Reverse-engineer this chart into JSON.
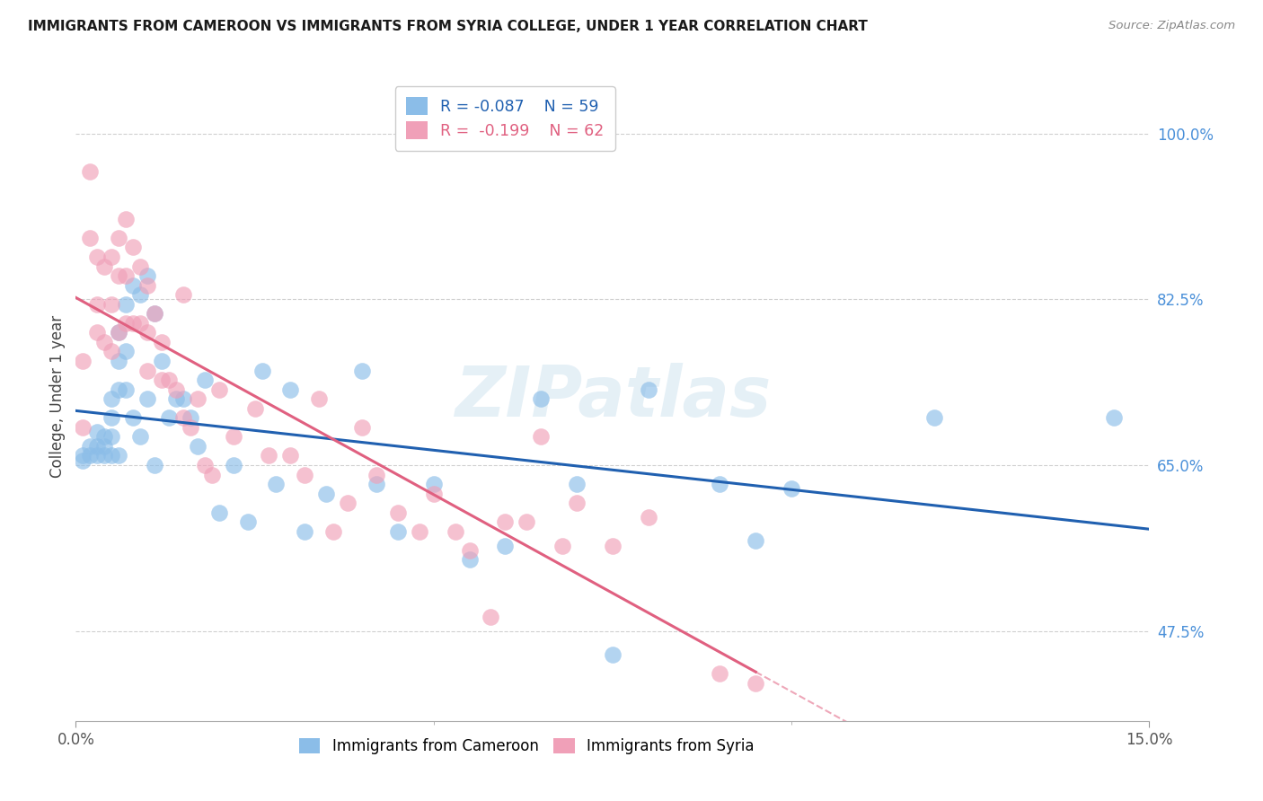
{
  "title": "IMMIGRANTS FROM CAMEROON VS IMMIGRANTS FROM SYRIA COLLEGE, UNDER 1 YEAR CORRELATION CHART",
  "source": "Source: ZipAtlas.com",
  "ylabel_label": "College, Under 1 year",
  "ylabel_ticks": [
    0.475,
    0.65,
    0.825,
    1.0
  ],
  "ylabel_tick_labels": [
    "47.5%",
    "65.0%",
    "82.5%",
    "100.0%"
  ],
  "xlim": [
    0.0,
    0.15
  ],
  "ylim": [
    0.38,
    1.065
  ],
  "legend_r_cameroon": "R = -0.087",
  "legend_n_cameroon": "N = 59",
  "legend_r_syria": "R =  -0.199",
  "legend_n_syria": "N = 62",
  "color_cameroon": "#8bbde8",
  "color_syria": "#f0a0b8",
  "trendline_cameroon_color": "#2060b0",
  "trendline_syria_color": "#e06080",
  "background_color": "#ffffff",
  "watermark": "ZIPatlas",
  "cameroon_x": [
    0.001,
    0.001,
    0.002,
    0.002,
    0.003,
    0.003,
    0.003,
    0.004,
    0.004,
    0.004,
    0.005,
    0.005,
    0.005,
    0.005,
    0.006,
    0.006,
    0.006,
    0.006,
    0.007,
    0.007,
    0.007,
    0.008,
    0.008,
    0.009,
    0.009,
    0.01,
    0.01,
    0.011,
    0.011,
    0.012,
    0.013,
    0.014,
    0.015,
    0.016,
    0.017,
    0.018,
    0.02,
    0.022,
    0.024,
    0.026,
    0.028,
    0.03,
    0.032,
    0.035,
    0.04,
    0.042,
    0.045,
    0.05,
    0.055,
    0.06,
    0.065,
    0.07,
    0.075,
    0.08,
    0.09,
    0.095,
    0.1,
    0.12,
    0.145
  ],
  "cameroon_y": [
    0.66,
    0.655,
    0.67,
    0.66,
    0.685,
    0.67,
    0.66,
    0.68,
    0.67,
    0.66,
    0.72,
    0.7,
    0.68,
    0.66,
    0.79,
    0.76,
    0.73,
    0.66,
    0.82,
    0.77,
    0.73,
    0.84,
    0.7,
    0.83,
    0.68,
    0.85,
    0.72,
    0.81,
    0.65,
    0.76,
    0.7,
    0.72,
    0.72,
    0.7,
    0.67,
    0.74,
    0.6,
    0.65,
    0.59,
    0.75,
    0.63,
    0.73,
    0.58,
    0.62,
    0.75,
    0.63,
    0.58,
    0.63,
    0.55,
    0.565,
    0.72,
    0.63,
    0.45,
    0.73,
    0.63,
    0.57,
    0.625,
    0.7,
    0.7
  ],
  "syria_x": [
    0.001,
    0.001,
    0.002,
    0.002,
    0.003,
    0.003,
    0.003,
    0.004,
    0.004,
    0.005,
    0.005,
    0.005,
    0.006,
    0.006,
    0.006,
    0.007,
    0.007,
    0.007,
    0.008,
    0.008,
    0.009,
    0.009,
    0.01,
    0.01,
    0.01,
    0.011,
    0.012,
    0.012,
    0.013,
    0.014,
    0.015,
    0.015,
    0.016,
    0.017,
    0.018,
    0.019,
    0.02,
    0.022,
    0.025,
    0.027,
    0.03,
    0.032,
    0.034,
    0.036,
    0.038,
    0.04,
    0.042,
    0.045,
    0.048,
    0.05,
    0.053,
    0.055,
    0.058,
    0.06,
    0.063,
    0.065,
    0.068,
    0.07,
    0.075,
    0.08,
    0.09,
    0.095
  ],
  "syria_y": [
    0.76,
    0.69,
    0.96,
    0.89,
    0.87,
    0.82,
    0.79,
    0.78,
    0.86,
    0.87,
    0.82,
    0.77,
    0.89,
    0.85,
    0.79,
    0.91,
    0.85,
    0.8,
    0.88,
    0.8,
    0.86,
    0.8,
    0.84,
    0.79,
    0.75,
    0.81,
    0.78,
    0.74,
    0.74,
    0.73,
    0.83,
    0.7,
    0.69,
    0.72,
    0.65,
    0.64,
    0.73,
    0.68,
    0.71,
    0.66,
    0.66,
    0.64,
    0.72,
    0.58,
    0.61,
    0.69,
    0.64,
    0.6,
    0.58,
    0.62,
    0.58,
    0.56,
    0.49,
    0.59,
    0.59,
    0.68,
    0.565,
    0.61,
    0.565,
    0.595,
    0.43,
    0.42
  ]
}
